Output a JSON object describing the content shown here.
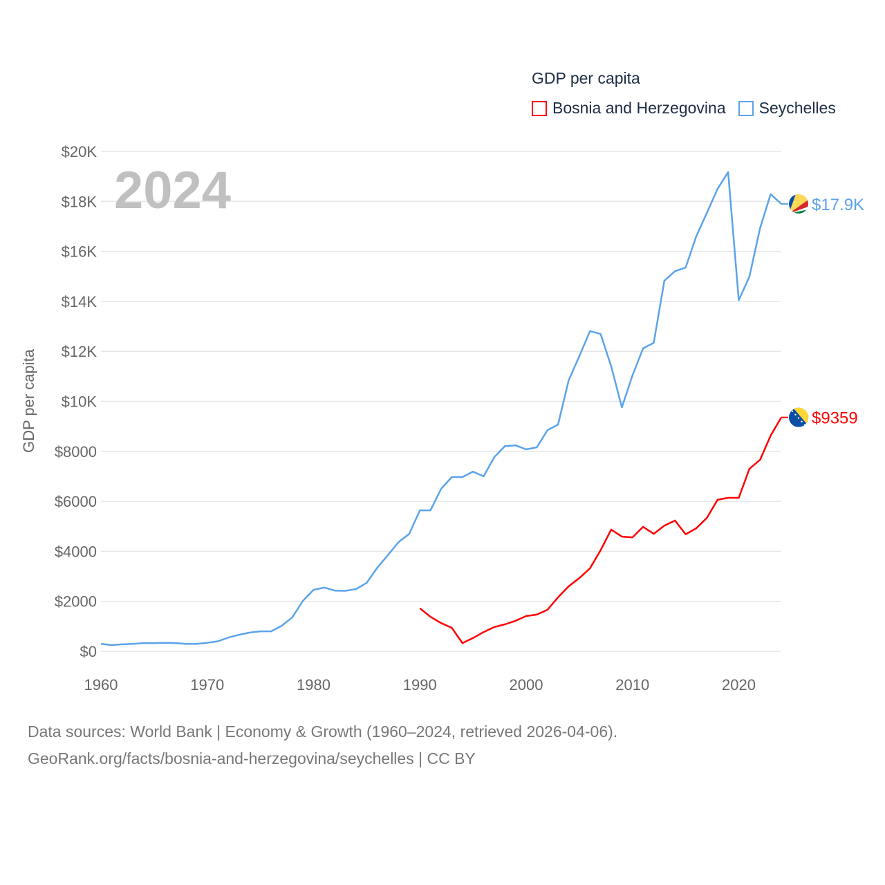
{
  "chart_data": {
    "type": "line",
    "title": "GDP per capita",
    "ylabel": "GDP per capita",
    "xlabel": "",
    "current_year": "2024",
    "ylim": [
      0,
      20000
    ],
    "xlim": [
      1960,
      2024
    ],
    "xticks": [
      "1960",
      "1970",
      "1980",
      "1990",
      "2000",
      "2010",
      "2020"
    ],
    "yticks": [
      {
        "v": 0,
        "label": "$0"
      },
      {
        "v": 2000,
        "label": "$2000"
      },
      {
        "v": 4000,
        "label": "$4000"
      },
      {
        "v": 6000,
        "label": "$6000"
      },
      {
        "v": 8000,
        "label": "$8000"
      },
      {
        "v": 10000,
        "label": "$10K"
      },
      {
        "v": 12000,
        "label": "$12K"
      },
      {
        "v": 14000,
        "label": "$14K"
      },
      {
        "v": 16000,
        "label": "$16K"
      },
      {
        "v": 18000,
        "label": "$18K"
      },
      {
        "v": 20000,
        "label": "$20K"
      }
    ],
    "grid": true,
    "legend_position": "top-right",
    "series": [
      {
        "name": "Bosnia and Herzegovina",
        "color": "#ff0000",
        "end_label": "$9359",
        "start_year": 1990,
        "values": [
          1720,
          1380,
          1130,
          940,
          330,
          530,
          770,
          970,
          1080,
          1220,
          1410,
          1470,
          1660,
          2160,
          2600,
          2930,
          3320,
          4040,
          4870,
          4590,
          4560,
          4980,
          4700,
          5030,
          5230,
          4680,
          4920,
          5340,
          6060,
          6140,
          6140,
          7300,
          7660,
          8630,
          9359
        ]
      },
      {
        "name": "Seychelles",
        "color": "#5ba3ea",
        "end_label": "$17.9K",
        "start_year": 1960,
        "values": [
          300,
          250,
          280,
          300,
          330,
          330,
          340,
          330,
          300,
          300,
          340,
          400,
          550,
          660,
          750,
          800,
          800,
          1020,
          1360,
          2020,
          2460,
          2550,
          2430,
          2420,
          2490,
          2740,
          3350,
          3850,
          4370,
          4700,
          5640,
          5640,
          6500,
          6970,
          6970,
          7190,
          7000,
          7770,
          8210,
          8240,
          8080,
          8160,
          8850,
          9070,
          10840,
          11810,
          12810,
          12700,
          11400,
          9760,
          11040,
          12120,
          12340,
          14830,
          15210,
          15350,
          16600,
          17540,
          18500,
          19170,
          14050,
          14990,
          16930,
          18290,
          17900
        ]
      }
    ]
  },
  "footer": {
    "line1": "Data sources: World Bank | Economy & Growth (1960–2024, retrieved 2026-04-06).",
    "line2": "GeoRank.org/facts/bosnia-and-herzegovina/seychelles | CC BY"
  }
}
